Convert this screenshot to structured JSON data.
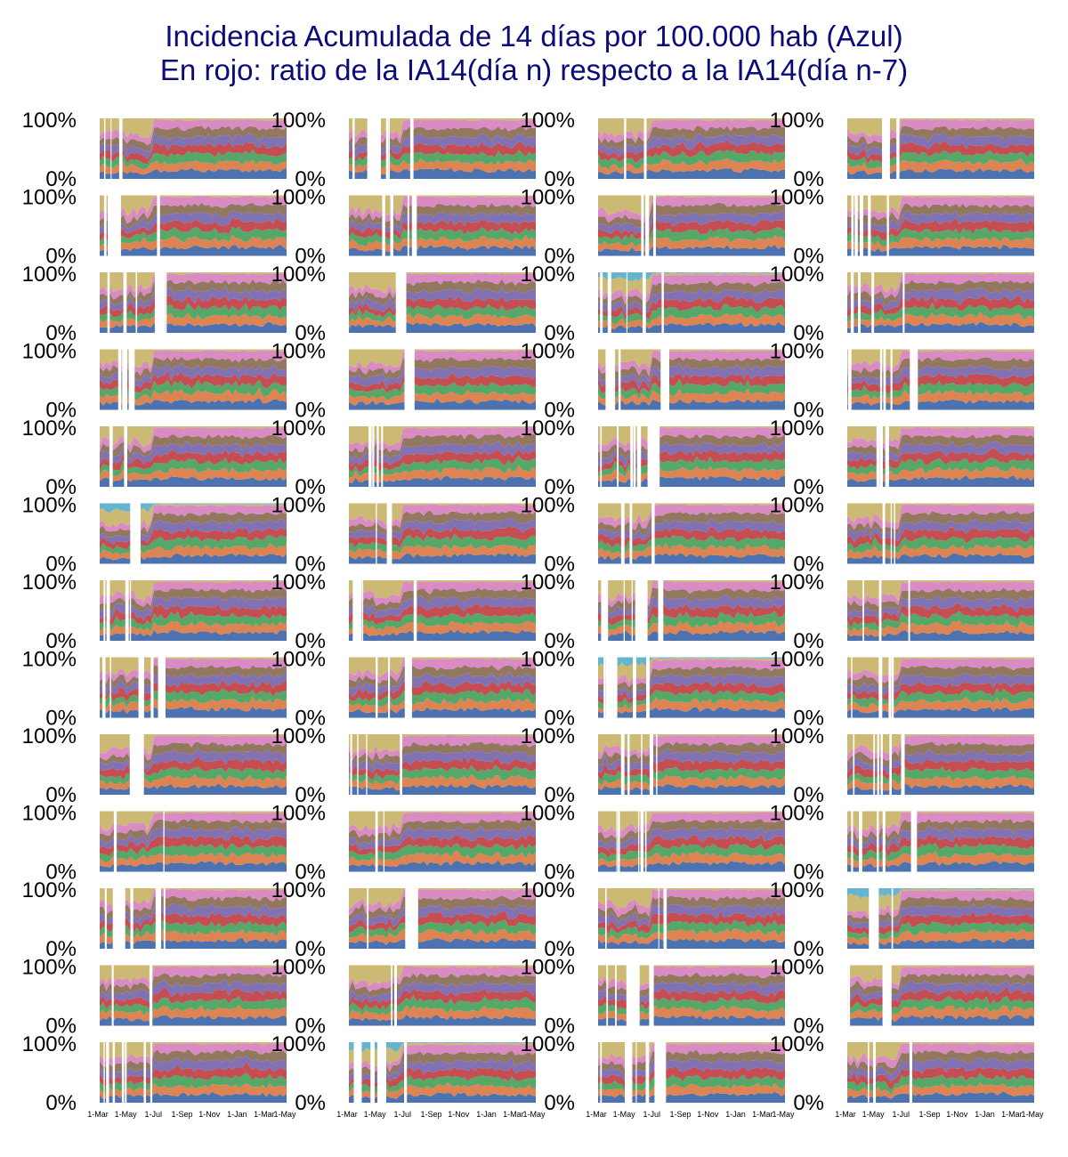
{
  "title": {
    "line1": "Incidencia Acumulada de 14 días por 100.000 hab (Azul)",
    "line2": "En rojo: ratio de la IA14(día n) respecto a la IA14(día n-7)"
  },
  "chart_data": {
    "type": "area",
    "stacked": "percent",
    "rows": 13,
    "cols": 4,
    "panel_count": 52,
    "y_tick_labels": [
      "100%",
      "0%"
    ],
    "ylim": [
      0,
      100
    ],
    "x_tick_labels": [
      "1-Mar",
      "1-May",
      "1-Jul",
      "1-Sep",
      "1-Nov",
      "1-Jan",
      "1-Mar",
      "1-May"
    ],
    "x_range": [
      "2020-03-01",
      "2021-05-01"
    ],
    "series_colors": [
      "#4c72b0",
      "#dd8452",
      "#55a868",
      "#c44e52",
      "#8172b3",
      "#937860",
      "#da8bc3",
      "#ccb974",
      "#64b5cd"
    ],
    "description": "Small-multiples grid of 100%-stacked area charts over time; layers are the daily share of the total per component.",
    "panels_with_cyan_layer": [
      11,
      21,
      31,
      44,
      50
    ]
  }
}
